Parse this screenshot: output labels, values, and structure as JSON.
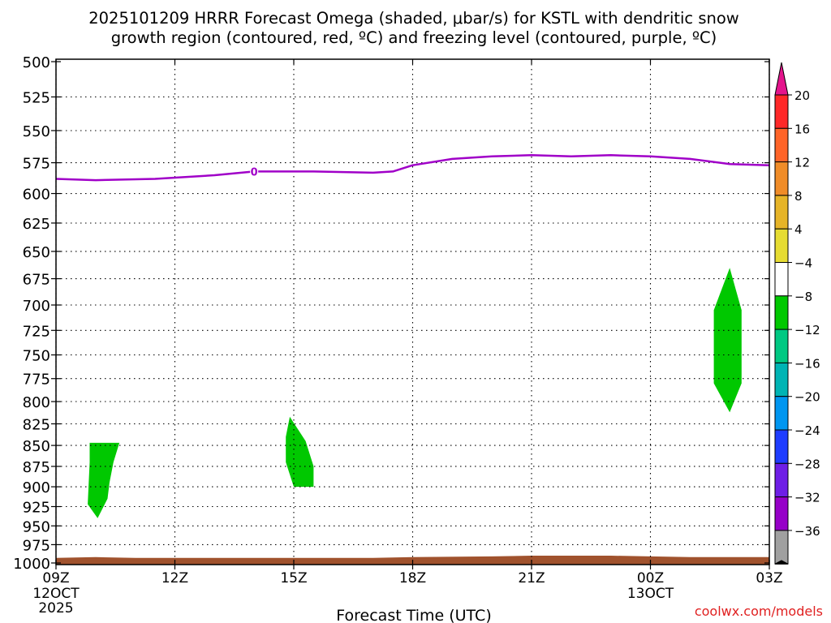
{
  "chart_data": {
    "type": "time-height cross section",
    "title_line1": "2025101209 HRRR Forecast Omega (shaded, μbar/s) for KSTL with dendritic snow",
    "title_line2": "growth region (contoured, red, ºC) and freezing level (contoured, purple, ºC)",
    "xlabel": "Forecast Time (UTC)",
    "credit": "coolwx.com/models",
    "x_hours": [
      0,
      18
    ],
    "y_pressure_hPa": [
      500,
      1000
    ],
    "x_ticks": [
      {
        "hour": 0,
        "label": "09Z",
        "sub1": "12OCT",
        "sub2": "2025"
      },
      {
        "hour": 3,
        "label": "12Z",
        "sub1": "",
        "sub2": ""
      },
      {
        "hour": 6,
        "label": "15Z",
        "sub1": "",
        "sub2": ""
      },
      {
        "hour": 9,
        "label": "18Z",
        "sub1": "",
        "sub2": ""
      },
      {
        "hour": 12,
        "label": "21Z",
        "sub1": "",
        "sub2": ""
      },
      {
        "hour": 15,
        "label": "00Z",
        "sub1": "13OCT",
        "sub2": ""
      },
      {
        "hour": 18,
        "label": "03Z",
        "sub1": "",
        "sub2": ""
      }
    ],
    "y_ticks": [
      500,
      525,
      550,
      575,
      600,
      625,
      650,
      675,
      700,
      725,
      750,
      775,
      800,
      825,
      850,
      875,
      900,
      925,
      950,
      975,
      1000
    ],
    "freezing_level": {
      "color": "#a000c8",
      "label": "0",
      "label_hour": 5.0,
      "points": [
        [
          0,
          588
        ],
        [
          1,
          589
        ],
        [
          2.5,
          588
        ],
        [
          4,
          585
        ],
        [
          5,
          582
        ],
        [
          6.5,
          582
        ],
        [
          8,
          583
        ],
        [
          8.5,
          582
        ],
        [
          9,
          577
        ],
        [
          10,
          572
        ],
        [
          11,
          570
        ],
        [
          12,
          569
        ],
        [
          13,
          570
        ],
        [
          14,
          569
        ],
        [
          15,
          570
        ],
        [
          16,
          572
        ],
        [
          17,
          576
        ],
        [
          18,
          577
        ]
      ]
    },
    "omega_regions": [
      {
        "level": "-4 to -8",
        "color": "#00c800",
        "points": [
          [
            0.85,
            847
          ],
          [
            1.6,
            847
          ],
          [
            1.45,
            870
          ],
          [
            1.35,
            895
          ],
          [
            1.3,
            915
          ],
          [
            1.05,
            940
          ],
          [
            0.8,
            922
          ],
          [
            0.85,
            870
          ]
        ]
      },
      {
        "level": "-4 to -8",
        "color": "#00c800",
        "points": [
          [
            5.9,
            817
          ],
          [
            6.3,
            845
          ],
          [
            6.5,
            875
          ],
          [
            6.5,
            900
          ],
          [
            6.0,
            900
          ],
          [
            5.8,
            870
          ],
          [
            5.8,
            840
          ]
        ]
      },
      {
        "level": "-4 to -8",
        "color": "#00c800",
        "points": [
          [
            17.0,
            665
          ],
          [
            17.3,
            705
          ],
          [
            17.3,
            780
          ],
          [
            17.0,
            812
          ],
          [
            16.6,
            780
          ],
          [
            16.6,
            705
          ]
        ]
      }
    ],
    "ground": {
      "color": "#a0522d",
      "top_points": [
        [
          0,
          993
        ],
        [
          1,
          992
        ],
        [
          2,
          993
        ],
        [
          4,
          993
        ],
        [
          8,
          993
        ],
        [
          9,
          992
        ],
        [
          11,
          991
        ],
        [
          12,
          990
        ],
        [
          14,
          990
        ],
        [
          15,
          991
        ],
        [
          16,
          992
        ],
        [
          18,
          992
        ]
      ]
    },
    "colorbar": {
      "labels": [
        "20",
        "16",
        "12",
        "8",
        "4",
        "−4",
        "−8",
        "−12",
        "−16",
        "−20",
        "−24",
        "−28",
        "−32",
        "−36"
      ],
      "top_color": "#e4148c",
      "bottom_color": "#000000",
      "colors": [
        "#ff2828",
        "#ff6428",
        "#f08c28",
        "#e6b428",
        "#e6dc32",
        "#ffffff",
        "#00c800",
        "#00c882",
        "#00b4b4",
        "#0096f0",
        "#1e3cff",
        "#6e1ee6",
        "#9600c8",
        "#a0a0a0"
      ]
    }
  }
}
